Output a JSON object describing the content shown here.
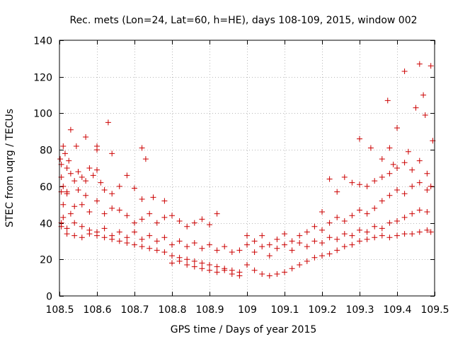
{
  "chart_data": {
    "type": "scatter",
    "title": "Rec. mets (Lon=24, Lat=60, h=HE), days 108-109, 2015, window 002",
    "xlabel": "GPS time / Days of year 2015",
    "ylabel": "STEC from uqrg / TECUs",
    "xlim": [
      108.5,
      109.5
    ],
    "ylim": [
      0,
      140
    ],
    "xticks": [
      108.5,
      108.6,
      108.7,
      108.8,
      108.9,
      109.0,
      109.1,
      109.2,
      109.3,
      109.4,
      109.5
    ],
    "xtick_labels": [
      "108.5",
      "108.6",
      "108.7",
      "108.8",
      "108.9",
      "109",
      "109.1",
      "109.2",
      "109.3",
      "109.4",
      "109.5"
    ],
    "yticks": [
      0,
      20,
      40,
      60,
      80,
      100,
      120,
      140
    ],
    "ytick_labels": [
      "0",
      "20",
      "40",
      "60",
      "80",
      "100",
      "120",
      "140"
    ],
    "grid": true,
    "marker": "+",
    "color": "#cc0000",
    "points": [
      [
        108.502,
        75
      ],
      [
        108.505,
        72
      ],
      [
        108.51,
        82
      ],
      [
        108.515,
        78
      ],
      [
        108.52,
        70
      ],
      [
        108.525,
        74
      ],
      [
        108.53,
        91
      ],
      [
        108.545,
        82
      ],
      [
        108.57,
        87
      ],
      [
        108.6,
        82
      ],
      [
        108.6,
        80
      ],
      [
        108.63,
        95
      ],
      [
        108.64,
        78
      ],
      [
        108.72,
        81
      ],
      [
        108.73,
        75
      ],
      [
        108.505,
        65
      ],
      [
        108.51,
        60
      ],
      [
        108.52,
        57
      ],
      [
        108.53,
        67
      ],
      [
        108.54,
        63
      ],
      [
        108.55,
        68
      ],
      [
        108.56,
        65
      ],
      [
        108.57,
        63
      ],
      [
        108.58,
        70
      ],
      [
        108.59,
        66
      ],
      [
        108.6,
        69
      ],
      [
        108.61,
        62
      ],
      [
        108.62,
        58
      ],
      [
        108.64,
        56
      ],
      [
        108.66,
        60
      ],
      [
        108.68,
        66
      ],
      [
        108.7,
        59
      ],
      [
        108.72,
        53
      ],
      [
        108.75,
        54
      ],
      [
        108.78,
        52
      ],
      [
        108.505,
        57
      ],
      [
        108.51,
        50
      ],
      [
        108.52,
        56
      ],
      [
        108.53,
        45
      ],
      [
        108.54,
        49
      ],
      [
        108.55,
        58
      ],
      [
        108.56,
        50
      ],
      [
        108.57,
        55
      ],
      [
        108.58,
        46
      ],
      [
        108.6,
        52
      ],
      [
        108.62,
        45
      ],
      [
        108.64,
        48
      ],
      [
        108.66,
        47
      ],
      [
        108.68,
        44
      ],
      [
        108.7,
        40
      ],
      [
        108.72,
        42
      ],
      [
        108.74,
        45
      ],
      [
        108.76,
        40
      ],
      [
        108.78,
        43
      ],
      [
        108.8,
        44
      ],
      [
        108.82,
        41
      ],
      [
        108.84,
        38
      ],
      [
        108.86,
        40
      ],
      [
        108.88,
        42
      ],
      [
        108.9,
        39
      ],
      [
        108.92,
        45
      ],
      [
        108.505,
        40
      ],
      [
        108.51,
        43
      ],
      [
        108.52,
        37
      ],
      [
        108.54,
        40
      ],
      [
        108.56,
        38
      ],
      [
        108.58,
        36
      ],
      [
        108.6,
        35
      ],
      [
        108.62,
        37
      ],
      [
        108.64,
        33
      ],
      [
        108.66,
        35
      ],
      [
        108.68,
        32
      ],
      [
        108.7,
        35
      ],
      [
        108.72,
        31
      ],
      [
        108.74,
        33
      ],
      [
        108.76,
        30
      ],
      [
        108.78,
        32
      ],
      [
        108.8,
        28
      ],
      [
        108.82,
        30
      ],
      [
        108.84,
        27
      ],
      [
        108.86,
        29
      ],
      [
        108.88,
        26
      ],
      [
        108.9,
        28
      ],
      [
        108.92,
        25
      ],
      [
        108.94,
        27
      ],
      [
        108.96,
        24
      ],
      [
        108.98,
        25
      ],
      [
        108.505,
        38
      ],
      [
        108.52,
        34
      ],
      [
        108.54,
        33
      ],
      [
        108.56,
        32
      ],
      [
        108.58,
        34
      ],
      [
        108.6,
        33
      ],
      [
        108.62,
        32
      ],
      [
        108.64,
        31
      ],
      [
        108.66,
        30
      ],
      [
        108.68,
        29
      ],
      [
        108.7,
        28
      ],
      [
        108.72,
        27
      ],
      [
        108.74,
        26
      ],
      [
        108.76,
        25
      ],
      [
        108.78,
        24
      ],
      [
        108.8,
        22
      ],
      [
        108.82,
        21
      ],
      [
        108.84,
        20
      ],
      [
        108.86,
        19
      ],
      [
        108.88,
        18
      ],
      [
        108.9,
        17
      ],
      [
        108.92,
        16
      ],
      [
        108.94,
        15
      ],
      [
        108.96,
        14
      ],
      [
        108.98,
        13
      ],
      [
        108.8,
        18
      ],
      [
        108.82,
        19
      ],
      [
        108.84,
        17
      ],
      [
        108.86,
        16
      ],
      [
        108.88,
        15
      ],
      [
        108.9,
        14
      ],
      [
        108.92,
        13
      ],
      [
        108.94,
        14
      ],
      [
        108.96,
        12
      ],
      [
        108.98,
        11
      ],
      [
        109.0,
        17
      ],
      [
        109.02,
        14
      ],
      [
        109.04,
        12
      ],
      [
        109.06,
        11
      ],
      [
        109.08,
        12
      ],
      [
        109.1,
        13
      ],
      [
        109.12,
        15
      ],
      [
        109.14,
        17
      ],
      [
        109.16,
        19
      ],
      [
        109.18,
        21
      ],
      [
        109.2,
        22
      ],
      [
        109.22,
        23
      ],
      [
        109.24,
        25
      ],
      [
        109.26,
        27
      ],
      [
        109.0,
        33
      ],
      [
        109.02,
        30
      ],
      [
        109.04,
        33
      ],
      [
        109.06,
        28
      ],
      [
        109.08,
        31
      ],
      [
        109.1,
        34
      ],
      [
        109.12,
        30
      ],
      [
        109.14,
        33
      ],
      [
        109.16,
        35
      ],
      [
        109.18,
        38
      ],
      [
        109.2,
        36
      ],
      [
        109.22,
        40
      ],
      [
        109.24,
        43
      ],
      [
        109.26,
        41
      ],
      [
        109.28,
        44
      ],
      [
        109.3,
        47
      ],
      [
        109.32,
        45
      ],
      [
        109.34,
        48
      ],
      [
        109.36,
        52
      ],
      [
        109.38,
        55
      ],
      [
        109.4,
        58
      ],
      [
        109.42,
        56
      ],
      [
        109.44,
        60
      ],
      [
        109.46,
        62
      ],
      [
        109.48,
        58
      ],
      [
        109.0,
        28
      ],
      [
        109.02,
        24
      ],
      [
        109.04,
        27
      ],
      [
        109.06,
        22
      ],
      [
        109.08,
        26
      ],
      [
        109.1,
        28
      ],
      [
        109.12,
        25
      ],
      [
        109.14,
        29
      ],
      [
        109.16,
        27
      ],
      [
        109.18,
        30
      ],
      [
        109.2,
        29
      ],
      [
        109.22,
        32
      ],
      [
        109.24,
        31
      ],
      [
        109.26,
        34
      ],
      [
        109.28,
        33
      ],
      [
        109.3,
        36
      ],
      [
        109.32,
        35
      ],
      [
        109.34,
        38
      ],
      [
        109.36,
        37
      ],
      [
        109.38,
        40
      ],
      [
        109.4,
        41
      ],
      [
        109.42,
        43
      ],
      [
        109.44,
        45
      ],
      [
        109.46,
        47
      ],
      [
        109.48,
        46
      ],
      [
        109.2,
        46
      ],
      [
        109.22,
        64
      ],
      [
        109.24,
        57
      ],
      [
        109.26,
        65
      ],
      [
        109.28,
        62
      ],
      [
        109.3,
        61
      ],
      [
        109.32,
        60
      ],
      [
        109.34,
        63
      ],
      [
        109.36,
        65
      ],
      [
        109.38,
        67
      ],
      [
        109.4,
        70
      ],
      [
        109.42,
        73
      ],
      [
        109.44,
        69
      ],
      [
        109.46,
        74
      ],
      [
        109.48,
        67
      ],
      [
        109.49,
        60
      ],
      [
        109.3,
        86
      ],
      [
        109.33,
        81
      ],
      [
        109.36,
        75
      ],
      [
        109.38,
        81
      ],
      [
        109.39,
        72
      ],
      [
        109.375,
        107
      ],
      [
        109.4,
        92
      ],
      [
        109.42,
        123
      ],
      [
        109.43,
        79
      ],
      [
        109.45,
        103
      ],
      [
        109.46,
        127
      ],
      [
        109.47,
        110
      ],
      [
        109.475,
        99
      ],
      [
        109.49,
        126
      ],
      [
        109.495,
        85
      ],
      [
        109.28,
        28
      ],
      [
        109.3,
        30
      ],
      [
        109.32,
        31
      ],
      [
        109.34,
        32
      ],
      [
        109.36,
        33
      ],
      [
        109.38,
        32
      ],
      [
        109.4,
        33
      ],
      [
        109.42,
        34
      ],
      [
        109.44,
        34
      ],
      [
        109.46,
        35
      ],
      [
        109.48,
        36
      ],
      [
        109.49,
        35
      ]
    ]
  }
}
